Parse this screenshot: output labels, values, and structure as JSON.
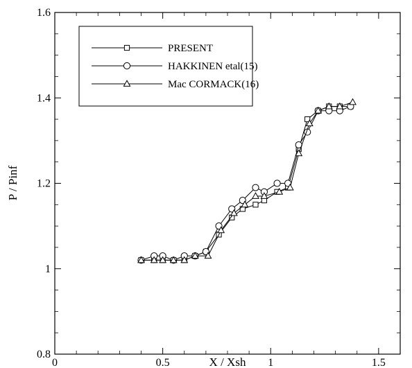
{
  "chart_data": {
    "type": "line",
    "title": "",
    "xlabel": "X / Xsh",
    "ylabel": "P / Pinf",
    "xlim": [
      0,
      1.6
    ],
    "ylim": [
      0.8,
      1.6
    ],
    "xticks": [
      0,
      0.5,
      1,
      1.5
    ],
    "yticks": [
      0.8,
      1,
      1.2,
      1.4,
      1.6
    ],
    "xtick_labels": [
      "0",
      "0.5",
      "1",
      "1.5"
    ],
    "ytick_labels": [
      "0.8",
      "1",
      "1.2",
      "1.4",
      "1.6"
    ],
    "grid": false,
    "legend_position": "top-left",
    "series": [
      {
        "name": "PRESENT",
        "marker": "square",
        "x": [
          0.4,
          0.46,
          0.5,
          0.55,
          0.6,
          0.65,
          0.7,
          0.76,
          0.82,
          0.87,
          0.93,
          0.97,
          1.03,
          1.08,
          1.13,
          1.17,
          1.22,
          1.27,
          1.32,
          1.37
        ],
        "y": [
          1.02,
          1.02,
          1.02,
          1.02,
          1.02,
          1.03,
          1.04,
          1.08,
          1.12,
          1.14,
          1.15,
          1.16,
          1.18,
          1.19,
          1.28,
          1.35,
          1.37,
          1.38,
          1.38,
          1.38
        ]
      },
      {
        "name": "HAKKINEN etal(15)",
        "marker": "circle",
        "x": [
          0.4,
          0.46,
          0.5,
          0.55,
          0.6,
          0.65,
          0.7,
          0.76,
          0.82,
          0.87,
          0.93,
          0.97,
          1.03,
          1.08,
          1.13,
          1.17,
          1.22,
          1.27,
          1.32,
          1.37
        ],
        "y": [
          1.02,
          1.03,
          1.03,
          1.02,
          1.03,
          1.03,
          1.04,
          1.1,
          1.14,
          1.16,
          1.19,
          1.18,
          1.2,
          1.2,
          1.29,
          1.32,
          1.37,
          1.37,
          1.37,
          1.38
        ]
      },
      {
        "name": "Mac CORMACK(16)",
        "marker": "triangle",
        "x": [
          0.4,
          0.46,
          0.5,
          0.55,
          0.6,
          0.65,
          0.71,
          0.77,
          0.83,
          0.88,
          0.93,
          0.97,
          1.04,
          1.09,
          1.13,
          1.18,
          1.22,
          1.27,
          1.32,
          1.38
        ],
        "y": [
          1.02,
          1.02,
          1.02,
          1.02,
          1.02,
          1.03,
          1.03,
          1.09,
          1.13,
          1.15,
          1.17,
          1.17,
          1.18,
          1.19,
          1.27,
          1.34,
          1.37,
          1.38,
          1.38,
          1.39
        ]
      }
    ]
  }
}
